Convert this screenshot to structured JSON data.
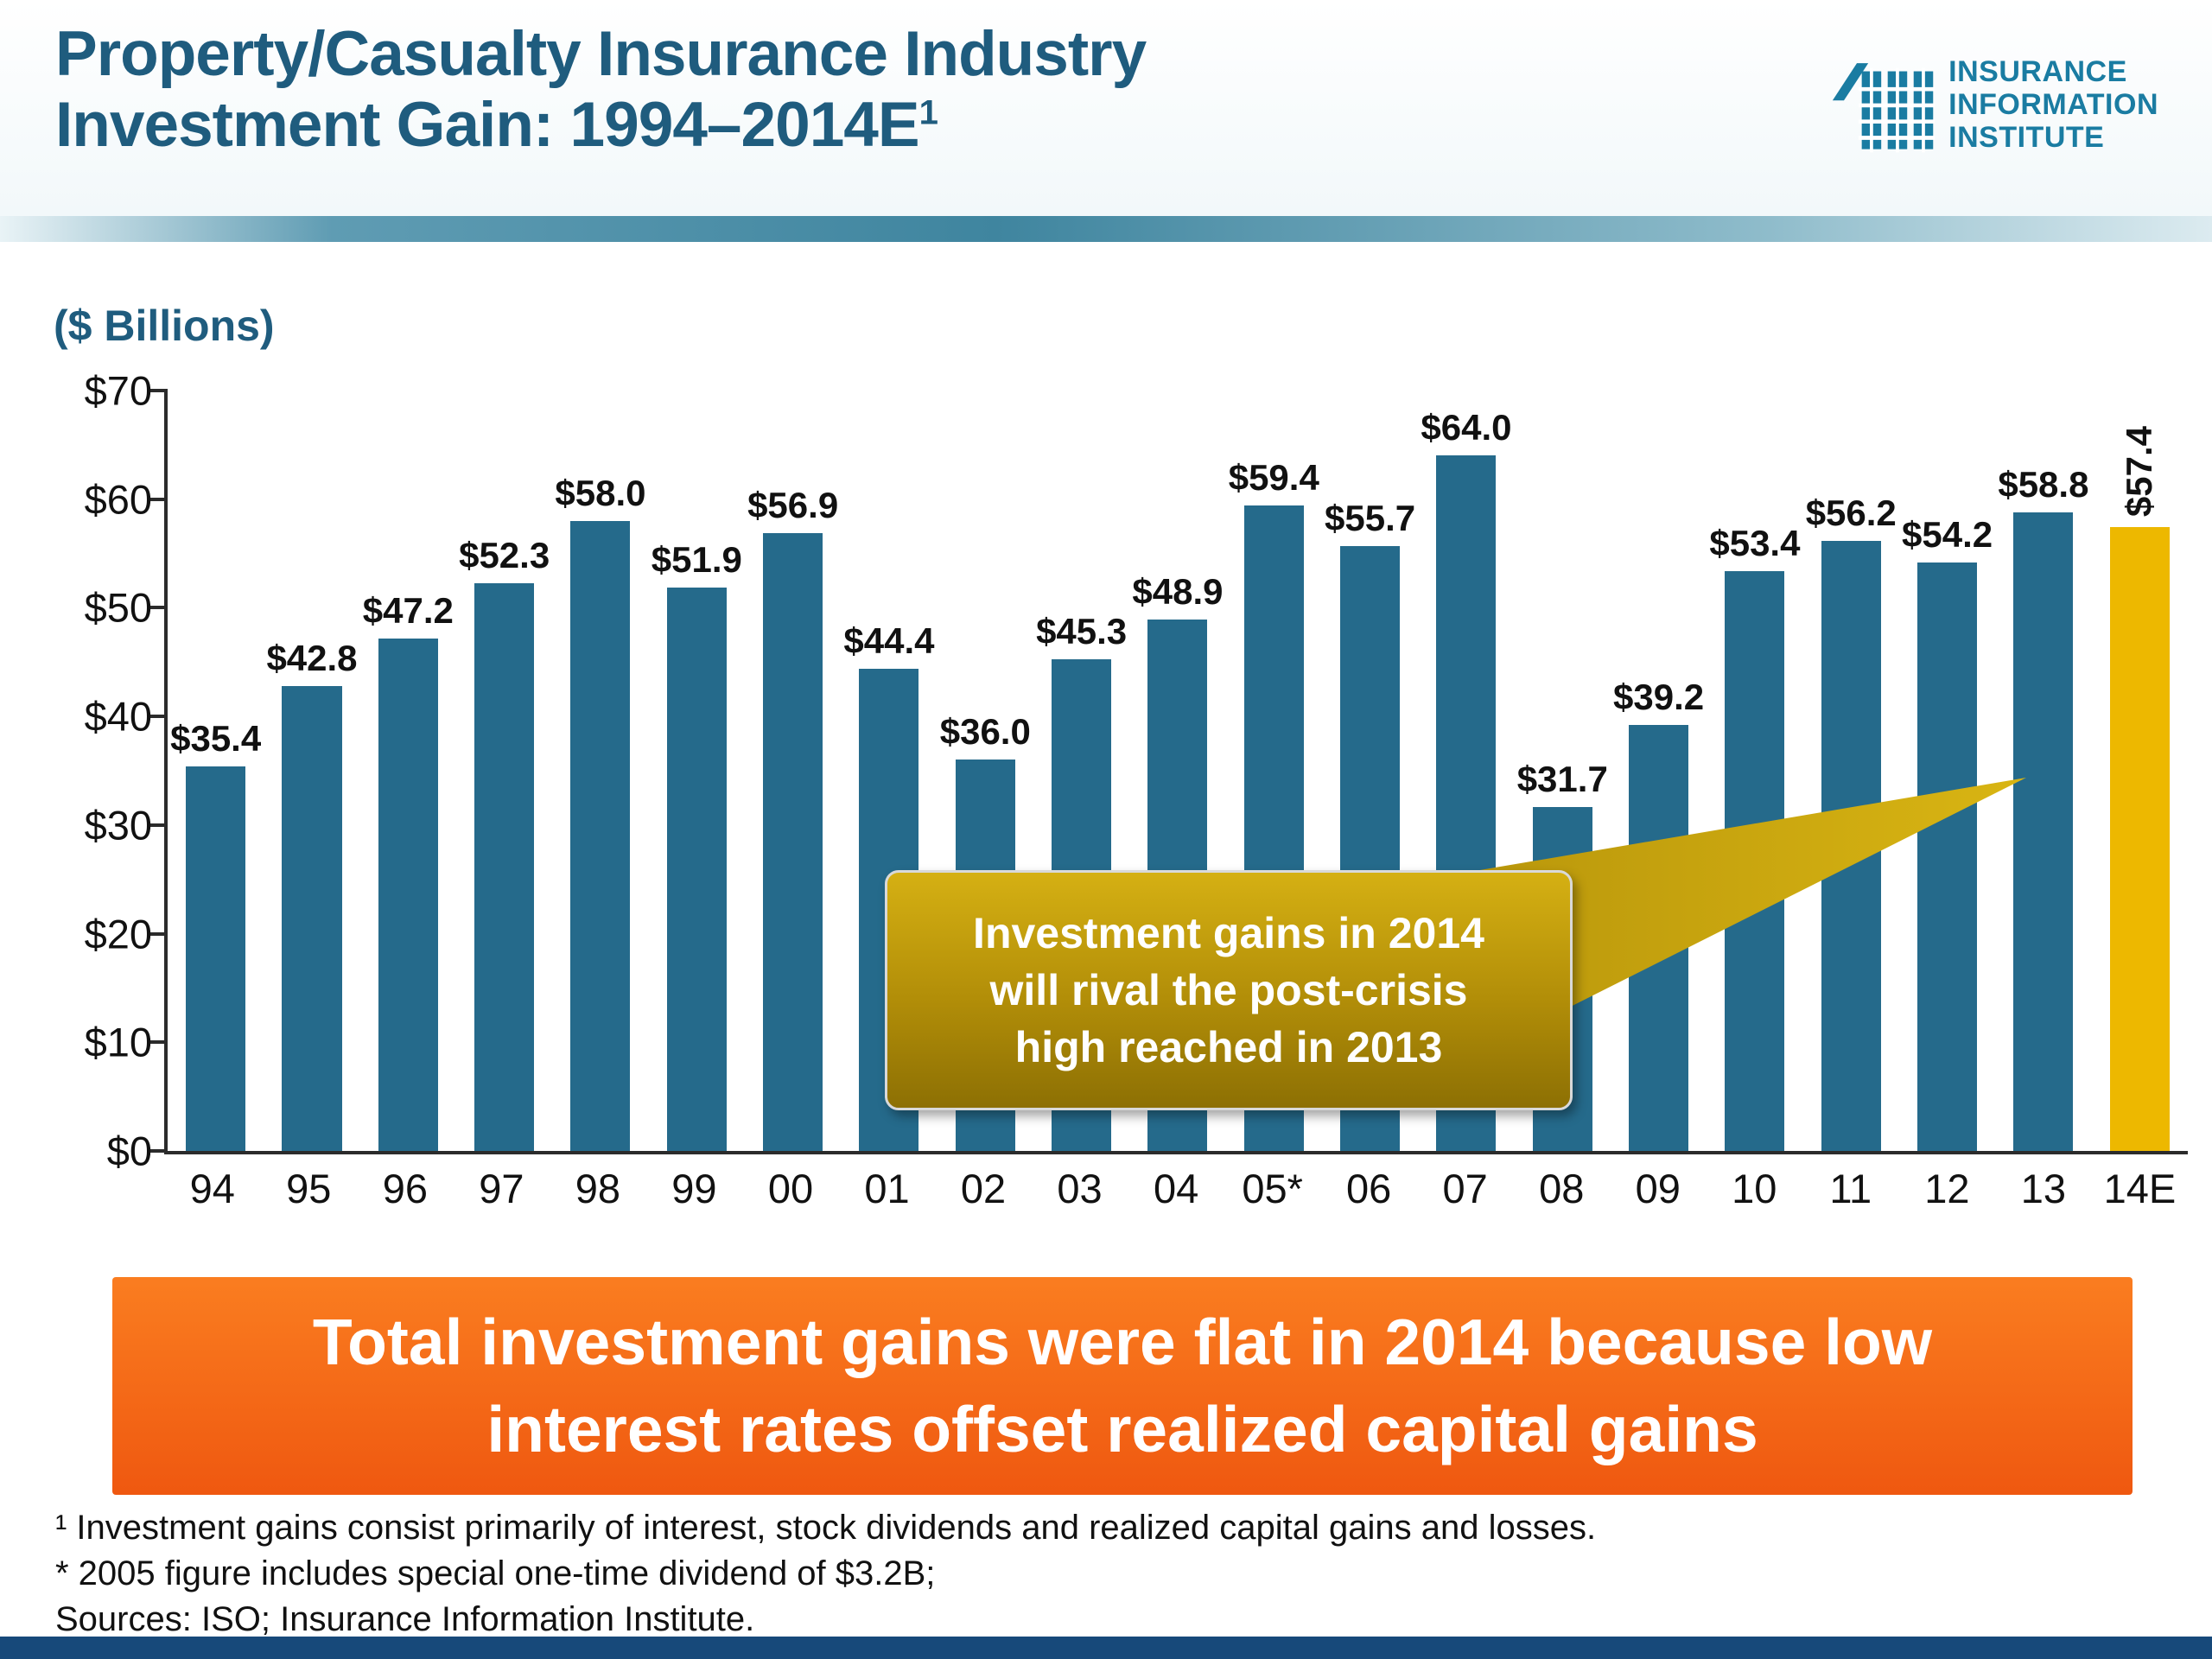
{
  "header": {
    "title_line1": "Property/Casualty Insurance Industry",
    "title_line2": "Investment Gain: 1994–2014E",
    "title_superscript": "1",
    "logo": {
      "line1": "INSURANCE",
      "line2": "INFORMATION",
      "line3": "INSTITUTE",
      "color": "#1a7ca2"
    }
  },
  "chart_data": {
    "type": "bar",
    "title": "Property/Casualty Insurance Industry Investment Gain: 1994–2014E",
    "units_label": "($ Billions)",
    "categories": [
      "94",
      "95",
      "96",
      "97",
      "98",
      "99",
      "00",
      "01",
      "02",
      "03",
      "04",
      "05*",
      "06",
      "07",
      "08",
      "09",
      "10",
      "11",
      "12",
      "13",
      "14E"
    ],
    "values": [
      35.4,
      42.8,
      47.2,
      52.3,
      58.0,
      51.9,
      56.9,
      44.4,
      36.0,
      45.3,
      48.9,
      59.4,
      55.7,
      64.0,
      31.7,
      39.2,
      53.4,
      56.2,
      54.2,
      58.8,
      57.4
    ],
    "bar_labels": [
      "$35.4",
      "$42.8",
      "$47.2",
      "$52.3",
      "$58.0",
      "$51.9",
      "$56.9",
      "$44.4",
      "$36.0",
      "$45.3",
      "$48.9",
      "$59.4",
      "$55.7",
      "$64.0",
      "$31.7",
      "$39.2",
      "$53.4",
      "$56.2",
      "$54.2",
      "$58.8",
      "$57.4"
    ],
    "ylim": [
      0,
      70
    ],
    "yticks": [
      0,
      10,
      20,
      30,
      40,
      50,
      60,
      70
    ],
    "ytick_labels": [
      "$0",
      "$10",
      "$20",
      "$30",
      "$40",
      "$50",
      "$60",
      "$70"
    ],
    "grid": false,
    "legend": "none",
    "bar_color": "#256a8b",
    "highlight_index": 20,
    "highlight_color": "#edb800",
    "rotated_label_index": 20
  },
  "callout": {
    "line1": "Investment gains in 2014",
    "line2": "will rival the post-crisis",
    "line3": "high reached in 2013"
  },
  "banner": {
    "line1": "Total investment gains were flat in 2014 because low",
    "line2": "interest rates offset realized capital gains"
  },
  "footnotes": {
    "line1": "¹ Investment gains consist primarily of interest, stock dividends and realized capital gains and losses.",
    "line2": "* 2005 figure includes special one-time dividend of $3.2B;",
    "line3": "Sources: ISO; Insurance Information Institute."
  }
}
